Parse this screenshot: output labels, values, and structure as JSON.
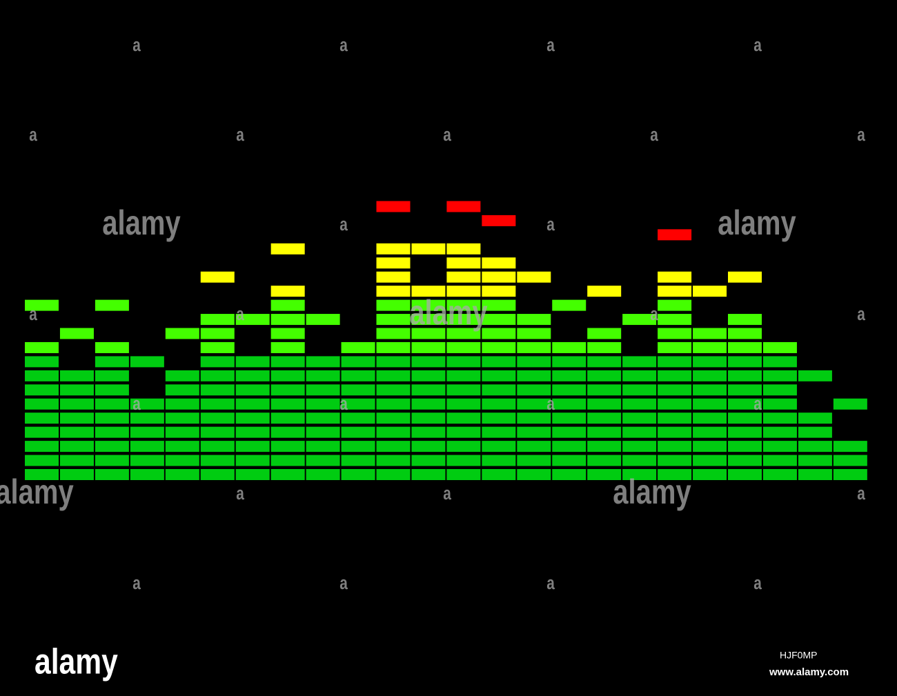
{
  "chart_data": {
    "type": "equalizer",
    "values": [
      10,
      8,
      10,
      6,
      8,
      12,
      9,
      14,
      9,
      10,
      17,
      14,
      17,
      16,
      12,
      10,
      11,
      9,
      15,
      11,
      12,
      10,
      5,
      3
    ],
    "peaks": [
      12,
      10,
      12,
      8,
      10,
      14,
      11,
      16,
      11,
      null,
      19,
      16,
      19,
      18,
      14,
      12,
      13,
      11,
      17,
      13,
      14,
      null,
      7,
      5
    ],
    "segments": 20,
    "zones": [
      {
        "from": 0,
        "color": "#00cc11"
      },
      {
        "from": 9,
        "color": "#44ff00"
      },
      {
        "from": 13,
        "color": "#ffff00"
      },
      {
        "from": 17,
        "color": "#ff0000"
      }
    ]
  },
  "watermarks": [
    "a",
    "a",
    "a",
    "a",
    "a",
    "a",
    "a",
    "a",
    "a",
    "alamy",
    "a",
    "a",
    "alamy",
    "a",
    "a",
    "alamy",
    "a",
    "a",
    "a",
    "a",
    "a",
    "a",
    "alamy",
    "a",
    "a",
    "alamy",
    "a",
    "a",
    "a",
    "a",
    "a"
  ],
  "logo": "alamy",
  "image_id": "HJF0MP",
  "site": "www.alamy.com"
}
